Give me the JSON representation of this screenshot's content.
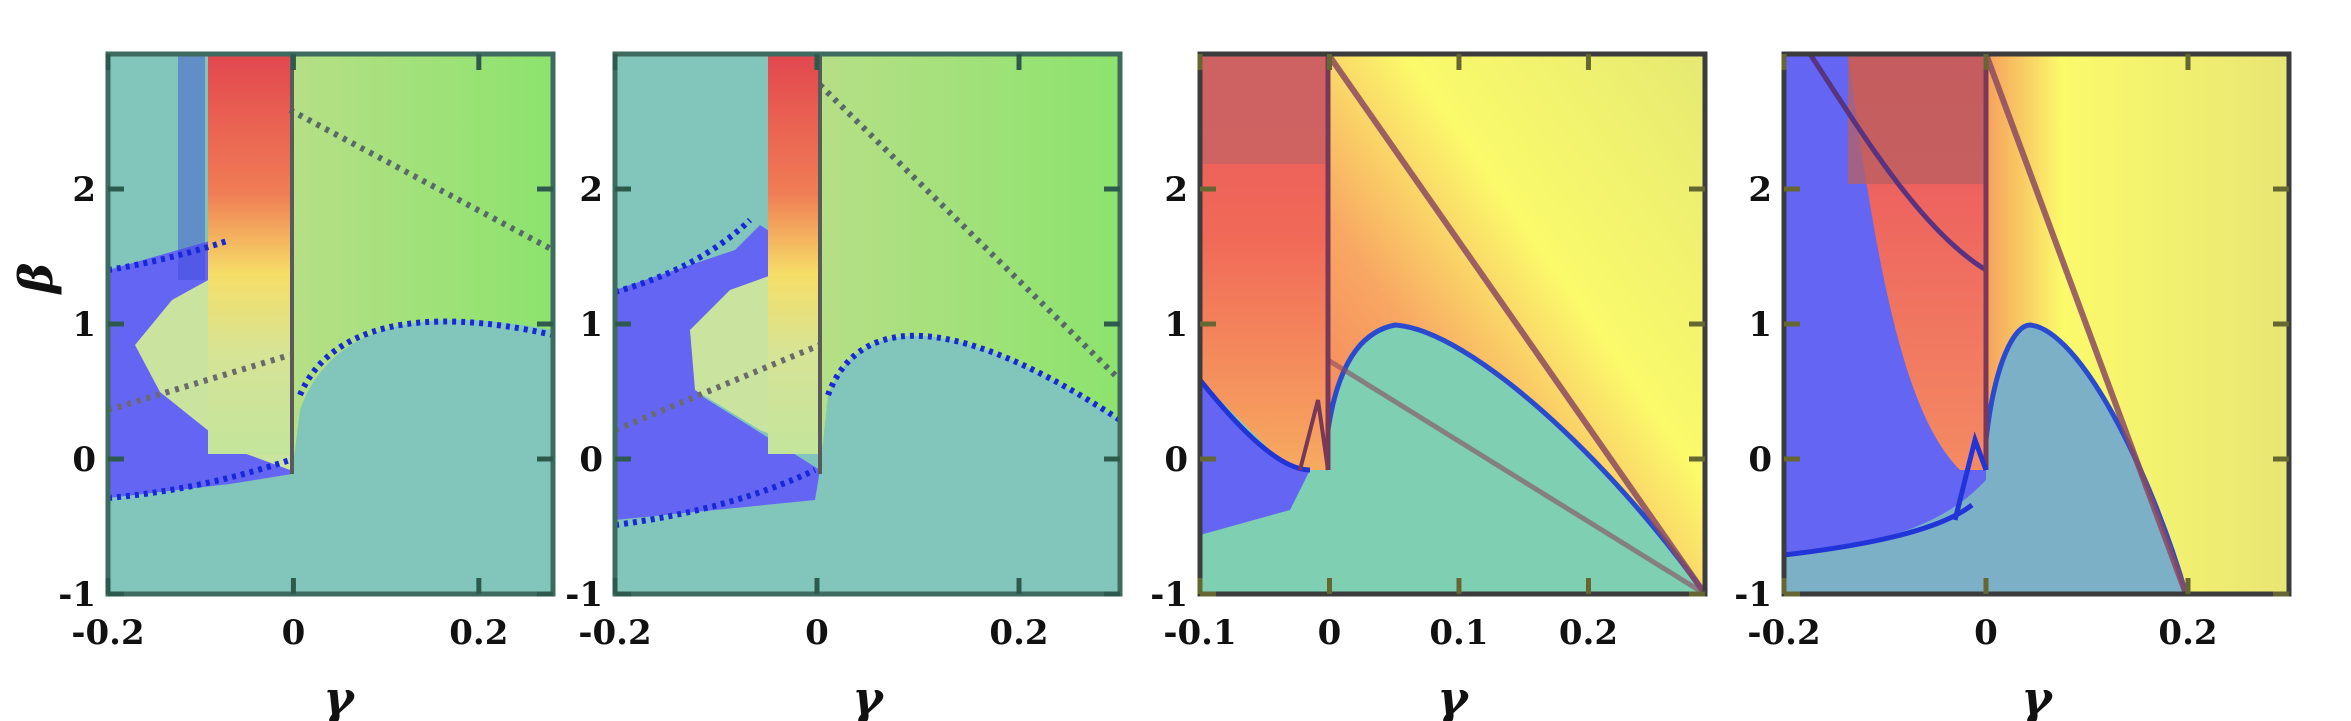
{
  "chart_data": [
    {
      "type": "heatmap",
      "panel": 1,
      "xlabel": "γ",
      "ylabel": "β",
      "xlim": [
        -0.2,
        0.28
      ],
      "ylim": [
        -1,
        3
      ],
      "xticks": [
        -0.2,
        0,
        0.2
      ],
      "xtick_labels": [
        "-0.2",
        "0",
        "0.2"
      ],
      "yticks": [
        -1,
        0,
        1,
        2
      ],
      "ytick_labels": [
        "-1",
        "0",
        "1",
        "2"
      ],
      "colors": {
        "background": "#82c6bb",
        "region_a": "#6466f3",
        "region_b": "#c8e59a",
        "region_c": "#e8454f",
        "right": "#8ee27a"
      },
      "grid": false
    },
    {
      "type": "heatmap",
      "panel": 2,
      "xlabel": "γ",
      "ylabel": "",
      "xlim": [
        -0.2,
        0.3
      ],
      "ylim": [
        -1,
        3
      ],
      "xticks": [
        -0.2,
        0,
        0.2
      ],
      "xtick_labels": [
        "-0.2",
        "0",
        "0.2"
      ],
      "yticks": [
        -1,
        0,
        1,
        2
      ],
      "ytick_labels": [
        "-1",
        "0",
        "1",
        "2"
      ],
      "colors": {
        "background": "#82c6bb",
        "region_a": "#6466f3",
        "region_b": "#c8e59a",
        "region_c": "#e8454f",
        "right": "#8ee27a"
      },
      "grid": false
    },
    {
      "type": "heatmap",
      "panel": 3,
      "xlabel": "γ",
      "ylabel": "",
      "xlim": [
        -0.1,
        0.29
      ],
      "ylim": [
        -1,
        3
      ],
      "xticks": [
        -0.1,
        0,
        0.1,
        0.2
      ],
      "xtick_labels": [
        "-0.1",
        "0",
        "0.1",
        "0.2"
      ],
      "yticks": [
        -1,
        0,
        1,
        2
      ],
      "ytick_labels": [
        "-1",
        "0",
        "1",
        "2"
      ],
      "colors": {
        "background": "#7fcfb2",
        "region_a": "#6466f3",
        "region_c": "#ee5a5d",
        "right": "#f9f86e"
      },
      "grid": false
    },
    {
      "type": "heatmap",
      "panel": 4,
      "xlabel": "γ",
      "ylabel": "",
      "xlim": [
        -0.2,
        0.3
      ],
      "ylim": [
        -1,
        3
      ],
      "xticks": [
        -0.2,
        0,
        0.2
      ],
      "xtick_labels": [
        "-0.2",
        "0",
        "0.2"
      ],
      "yticks": [
        -1,
        0,
        1,
        2
      ],
      "ytick_labels": [
        "-1",
        "0",
        "1",
        "2"
      ],
      "colors": {
        "background": "#7cb0c6",
        "region_a": "#6466f3",
        "region_c": "#ee5a5d",
        "right": "#f9f86e"
      },
      "grid": false
    }
  ]
}
